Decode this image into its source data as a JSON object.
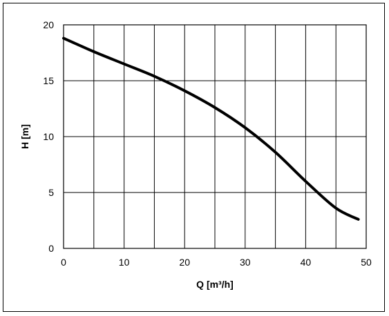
{
  "chart_data": {
    "type": "line",
    "title": "",
    "xlabel": "Q [m³/h]",
    "ylabel": "H [m]",
    "xlim": [
      0,
      50
    ],
    "ylim": [
      0,
      20
    ],
    "x_ticks": [
      0,
      10,
      20,
      30,
      40,
      50
    ],
    "y_ticks": [
      0,
      5,
      10,
      15,
      20
    ],
    "x_grid_step": 5,
    "y_grid_step": 5,
    "grid": true,
    "legend": "none",
    "series": [
      {
        "color": "#000000",
        "x": [
          0,
          5,
          10,
          15,
          20,
          25,
          30,
          35,
          40,
          45,
          48.7
        ],
        "y": [
          18.8,
          17.6,
          16.5,
          15.4,
          14.1,
          12.6,
          10.8,
          8.6,
          6.0,
          3.6,
          2.6
        ]
      }
    ]
  }
}
